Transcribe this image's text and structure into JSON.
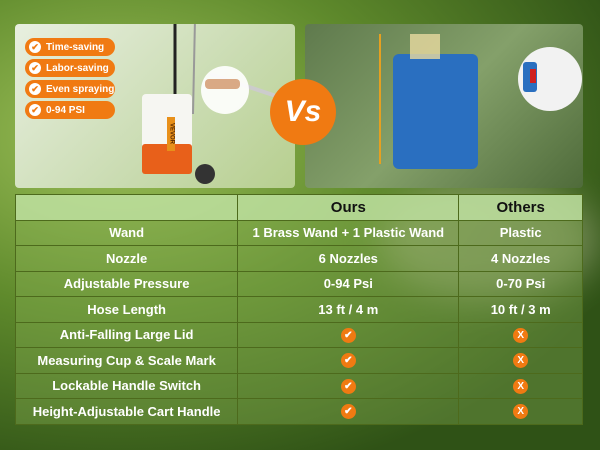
{
  "features": [
    "Time-saving",
    "Labor-saving",
    "Even spraying",
    "0-94 PSI"
  ],
  "vs_label": "Vs",
  "brand_label": "VEVOR",
  "colors": {
    "accent": "#f07a12",
    "header_bg": "#bfe1a0"
  },
  "table": {
    "headers": [
      "",
      "Ours",
      "Others"
    ],
    "rows": [
      {
        "label": "Wand",
        "ours": "1 Brass Wand + 1 Plastic Wand",
        "others": "Plastic"
      },
      {
        "label": "Nozzle",
        "ours": "6 Nozzles",
        "others": "4 Nozzles"
      },
      {
        "label": "Adjustable Pressure",
        "ours": "0-94 Psi",
        "others": "0-70 Psi"
      },
      {
        "label": "Hose Length",
        "ours": "13 ft / 4 m",
        "others": "10 ft / 3 m"
      },
      {
        "label": "Anti-Falling Large Lid",
        "ours_icon": "check-icon",
        "others_icon": "x-icon"
      },
      {
        "label": "Measuring Cup & Scale Mark",
        "ours_icon": "check-icon",
        "others_icon": "x-icon"
      },
      {
        "label": "Lockable Handle Switch",
        "ours_icon": "check-icon",
        "others_icon": "x-icon"
      },
      {
        "label": "Height-Adjustable Cart Handle",
        "ours_icon": "check-icon",
        "others_icon": "x-icon"
      }
    ]
  }
}
